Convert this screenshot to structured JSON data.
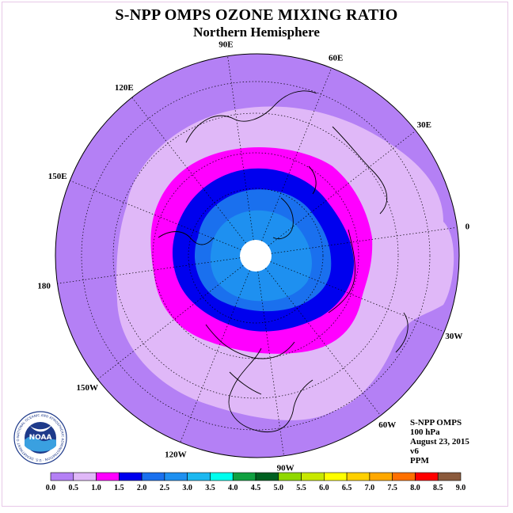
{
  "title": "S-NPP OMPS OZONE MIXING RATIO",
  "subtitle": "Northern Hemisphere",
  "longitude_labels": [
    {
      "text": "90E",
      "lon": 90
    },
    {
      "text": "60E",
      "lon": 60
    },
    {
      "text": "30E",
      "lon": 30
    },
    {
      "text": "0",
      "lon": 0
    },
    {
      "text": "30W",
      "lon": -30
    },
    {
      "text": "60W",
      "lon": -60
    },
    {
      "text": "90W",
      "lon": -90
    },
    {
      "text": "120W",
      "lon": -120
    },
    {
      "text": "150W",
      "lon": -150
    },
    {
      "text": "180",
      "lon": 180
    },
    {
      "text": "150E",
      "lon": 150
    },
    {
      "text": "120E",
      "lon": 120
    }
  ],
  "info": {
    "instrument": "S-NPP OMPS",
    "level": "100 hPa",
    "date": "August 23, 2015",
    "version": "v6",
    "units": "PPM"
  },
  "logo": {
    "text": "NOAA",
    "ring_text": "NATIONAL OCEANIC AND ATMOSPHERIC ADMINISTRATION · U.S. DEPARTMENT OF COMMERCE"
  },
  "colorbar": {
    "labels": [
      "0.0",
      "0.5",
      "1.0",
      "1.5",
      "2.0",
      "2.5",
      "3.0",
      "3.5",
      "4.0",
      "4.5",
      "5.0",
      "5.5",
      "6.0",
      "6.5",
      "7.0",
      "7.5",
      "8.0",
      "8.5",
      "9.0"
    ],
    "colors": [
      "#b480f5",
      "#e0b8f8",
      "#ff00ff",
      "#0000ee",
      "#1a70ee",
      "#1e90f0",
      "#1cb8f0",
      "#00ffee",
      "#10a040",
      "#006020",
      "#90d800",
      "#c8e800",
      "#ffff00",
      "#ffd000",
      "#ffa800",
      "#ff7000",
      "#ff0000",
      "#8b5a3c"
    ]
  },
  "map_colors": {
    "band_0_05": "#b480f5",
    "band_05_10": "#e0b8f8",
    "band_10_15": "#ff00ff",
    "band_15_20": "#0000ee",
    "band_20_25": "#1a70ee",
    "band_25_30": "#1e90f0",
    "no_data": "#ffffff"
  }
}
